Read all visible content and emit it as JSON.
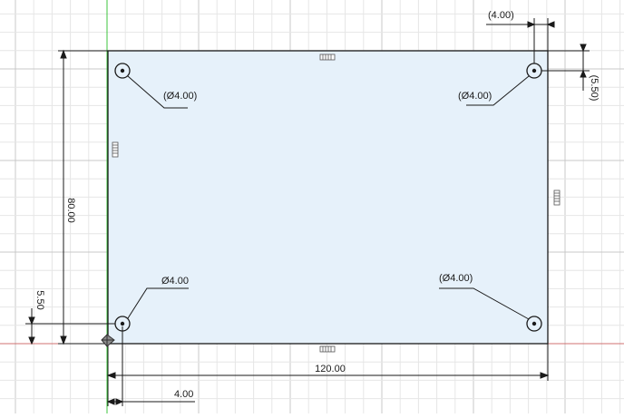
{
  "colors": {
    "background": "#ffffff",
    "grid_minor": "#e6e6e6",
    "grid_major": "#c8c8c8",
    "plate_fill": "#e6f1fa",
    "outline": "#1a1a1a",
    "axis_green": "#3cc43c",
    "axis_red": "#d07070"
  },
  "dimensions": {
    "width": "120.00",
    "height": "80.00",
    "offset_x": "4.00",
    "offset_y": "5.50",
    "ref_offset_x": "(4.00)",
    "ref_offset_y": "(5.50)"
  },
  "holes": {
    "bottom_left": "Ø4.00",
    "top_left": "(Ø4.00)",
    "top_right": "(Ø4.00)",
    "bottom_right": "(Ø4.00)"
  },
  "icons": {
    "constraint": "horizontal-constraint-icon",
    "origin": "origin-icon"
  }
}
